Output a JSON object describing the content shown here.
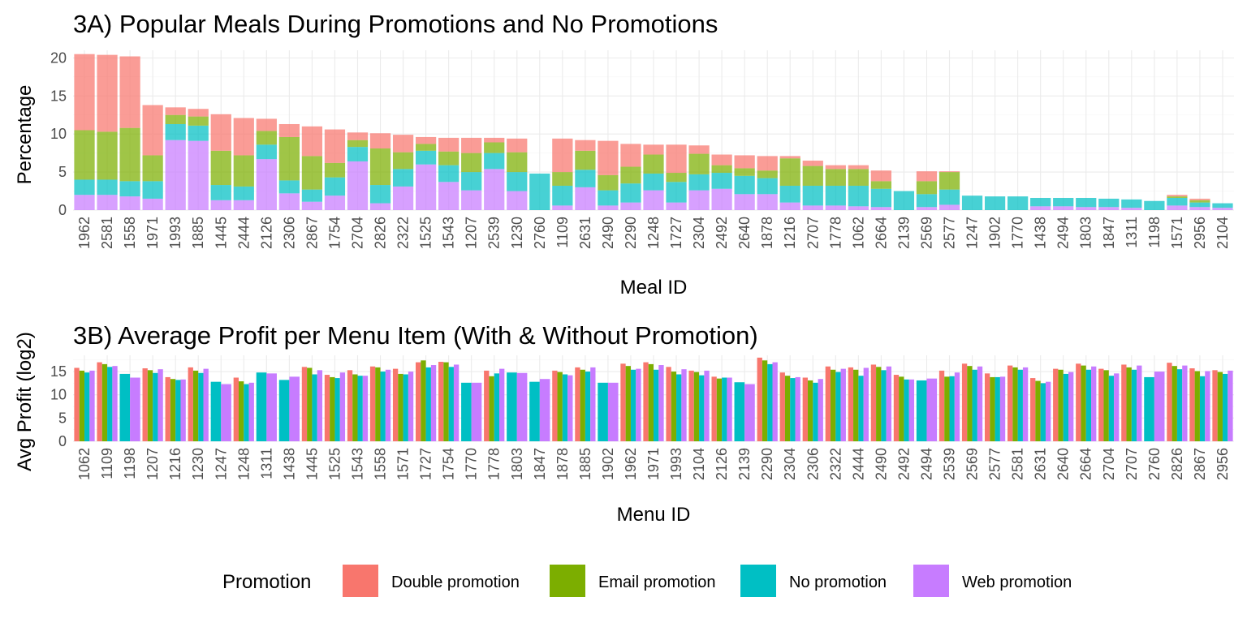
{
  "colors": {
    "Double promotion": "#F8766D",
    "Email promotion": "#7CAE00",
    "No promotion": "#00BFC4",
    "Web promotion": "#C77CFF"
  },
  "legend": {
    "title": "Promotion",
    "items": [
      "Double promotion",
      "Email promotion",
      "No promotion",
      "Web promotion"
    ]
  },
  "chart_data": [
    {
      "type": "bar",
      "stacked": true,
      "title": "3A) Popular Meals During Promotions and No Promotions",
      "xlabel": "Meal ID",
      "ylabel": "Percentage",
      "ylim": [
        0,
        21
      ],
      "yticks": [
        0,
        5,
        10,
        15,
        20
      ],
      "grid": true,
      "categories": [
        "1962",
        "2581",
        "1558",
        "1971",
        "1993",
        "1885",
        "1445",
        "2444",
        "2126",
        "2306",
        "2867",
        "1754",
        "2704",
        "2826",
        "2322",
        "1525",
        "1543",
        "1207",
        "2539",
        "1230",
        "2760",
        "1109",
        "2631",
        "2490",
        "2290",
        "1248",
        "1727",
        "2304",
        "2492",
        "2640",
        "1878",
        "1216",
        "2707",
        "1778",
        "1062",
        "2664",
        "2139",
        "2569",
        "2577",
        "1247",
        "1902",
        "1770",
        "1438",
        "2494",
        "1803",
        "1847",
        "1311",
        "1198",
        "1571",
        "2956",
        "2104"
      ],
      "series": [
        {
          "name": "Web promotion",
          "values": [
            2.0,
            2.0,
            1.8,
            1.5,
            9.2,
            9.1,
            1.3,
            1.3,
            6.7,
            2.2,
            1.1,
            1.9,
            6.4,
            0.9,
            3.1,
            6.0,
            3.7,
            2.6,
            5.4,
            2.5,
            0,
            0.6,
            3.0,
            0.6,
            1.0,
            2.6,
            1.0,
            2.6,
            2.8,
            2.1,
            2.1,
            1.0,
            0.6,
            0.6,
            0.5,
            0.4,
            0,
            0.4,
            0.7,
            0,
            0,
            0,
            0.5,
            0.5,
            0.4,
            0.4,
            0.3,
            0,
            0.6,
            0.4,
            0.3
          ]
        },
        {
          "name": "No promotion",
          "values": [
            2.0,
            2.0,
            2.0,
            2.3,
            2.1,
            2.0,
            2.0,
            1.8,
            1.9,
            1.7,
            1.6,
            2.4,
            1.9,
            2.4,
            2.3,
            1.8,
            2.2,
            2.4,
            2.1,
            2.5,
            4.8,
            2.6,
            2.3,
            2.0,
            2.5,
            2.2,
            2.7,
            2.1,
            2.1,
            2.4,
            2.1,
            2.2,
            2.6,
            2.6,
            2.7,
            2.4,
            2.5,
            1.7,
            2.0,
            1.9,
            1.8,
            1.8,
            1.1,
            1.1,
            1.2,
            1.1,
            1.1,
            1.2,
            1.0,
            0.6,
            0.6
          ]
        },
        {
          "name": "Email promotion",
          "values": [
            6.5,
            6.3,
            7.0,
            3.4,
            1.2,
            1.2,
            4.5,
            4.1,
            1.8,
            5.7,
            4.4,
            1.9,
            0.9,
            4.8,
            2.2,
            0.9,
            1.8,
            2.5,
            1.4,
            2.6,
            0,
            1.8,
            2.5,
            2.0,
            2.2,
            2.5,
            1.2,
            2.7,
            1.0,
            1.0,
            1.0,
            3.6,
            2.6,
            2.2,
            2.2,
            1.0,
            0,
            1.7,
            2.3,
            0,
            0,
            0,
            0,
            0,
            0,
            0,
            0,
            0,
            0.2,
            0.3,
            0
          ]
        },
        {
          "name": "Double promotion",
          "values": [
            10.0,
            10.1,
            9.4,
            6.6,
            1.0,
            1.0,
            4.8,
            4.9,
            1.6,
            1.7,
            3.9,
            4.4,
            1.0,
            2.0,
            2.3,
            0.9,
            1.8,
            2.0,
            0.6,
            1.8,
            0,
            4.4,
            1.4,
            4.5,
            3.0,
            1.3,
            3.7,
            1.1,
            1.4,
            1.7,
            1.9,
            0.3,
            0.7,
            0.5,
            0.5,
            1.4,
            0,
            1.3,
            0.1,
            0,
            0,
            0,
            0,
            0,
            0,
            0,
            0,
            0,
            0.2,
            0.2,
            0
          ]
        }
      ]
    },
    {
      "type": "bar",
      "grouped": true,
      "title": "3B) Average Profit per Menu Item (With & Without Promotion)",
      "xlabel": "Menu ID",
      "ylabel": "Avg Profit (log2)",
      "ylim": [
        0,
        18.5
      ],
      "yticks": [
        0,
        5,
        10,
        15
      ],
      "grid": true,
      "categories": [
        "1062",
        "1109",
        "1198",
        "1207",
        "1216",
        "1230",
        "1247",
        "1248",
        "1311",
        "1438",
        "1445",
        "1525",
        "1543",
        "1558",
        "1571",
        "1727",
        "1754",
        "1770",
        "1778",
        "1803",
        "1847",
        "1878",
        "1885",
        "1902",
        "1962",
        "1971",
        "1993",
        "2104",
        "2126",
        "2139",
        "2290",
        "2304",
        "2306",
        "2322",
        "2444",
        "2490",
        "2492",
        "2494",
        "2539",
        "2569",
        "2577",
        "2581",
        "2631",
        "2640",
        "2664",
        "2704",
        "2707",
        "2760",
        "2826",
        "2867",
        "2956"
      ],
      "series": [
        {
          "name": "Double promotion",
          "values": [
            15.8,
            17.0,
            null,
            15.7,
            13.8,
            15.9,
            null,
            13.7,
            null,
            null,
            16.0,
            14.3,
            15.3,
            16.1,
            15.6,
            17.0,
            17.1,
            null,
            15.2,
            null,
            null,
            15.2,
            15.9,
            null,
            16.7,
            17.0,
            16.0,
            15.2,
            13.9,
            null,
            18.0,
            14.8,
            13.7,
            16.1,
            15.9,
            16.5,
            14.3,
            null,
            15.2,
            16.7,
            14.6,
            16.3,
            13.6,
            15.6,
            16.7,
            15.6,
            16.5,
            null,
            16.9,
            15.7,
            15.3
          ]
        },
        {
          "name": "Email promotion",
          "values": [
            15.2,
            16.6,
            null,
            15.3,
            13.4,
            15.2,
            null,
            12.9,
            null,
            null,
            15.8,
            13.8,
            14.4,
            15.9,
            14.5,
            17.4,
            17.0,
            null,
            14.0,
            null,
            null,
            14.9,
            15.4,
            null,
            16.2,
            16.6,
            15.0,
            14.9,
            13.5,
            null,
            17.4,
            14.1,
            13.1,
            15.4,
            15.4,
            16.0,
            13.9,
            null,
            13.9,
            16.2,
            13.8,
            15.9,
            13.0,
            15.4,
            16.3,
            15.3,
            15.9,
            null,
            16.2,
            15.1,
            14.9
          ]
        },
        {
          "name": "No promotion",
          "values": [
            14.8,
            16.0,
            14.5,
            14.7,
            13.2,
            14.7,
            12.8,
            12.3,
            14.8,
            13.2,
            14.4,
            13.6,
            14.1,
            15.0,
            14.4,
            15.9,
            16.0,
            12.6,
            14.6,
            14.8,
            12.8,
            14.4,
            15.0,
            12.6,
            15.4,
            15.4,
            14.4,
            14.2,
            13.7,
            12.7,
            16.6,
            13.6,
            12.6,
            14.9,
            14.1,
            15.3,
            13.3,
            13.1,
            14.0,
            15.4,
            13.8,
            15.4,
            12.5,
            14.5,
            15.4,
            14.1,
            15.4,
            13.8,
            15.5,
            14.0,
            14.5
          ]
        },
        {
          "name": "Web promotion",
          "values": [
            15.2,
            16.2,
            13.7,
            15.5,
            13.3,
            15.6,
            12.3,
            12.6,
            14.6,
            13.9,
            15.3,
            14.8,
            14.1,
            15.4,
            15.0,
            16.4,
            16.5,
            12.6,
            15.6,
            14.7,
            13.4,
            14.2,
            15.9,
            12.6,
            15.6,
            16.4,
            15.5,
            15.2,
            13.7,
            12.3,
            17.0,
            13.8,
            13.4,
            15.6,
            15.8,
            16.1,
            13.3,
            13.5,
            14.8,
            16.1,
            13.9,
            15.9,
            12.8,
            14.9,
            16.1,
            14.6,
            16.3,
            15.0,
            16.3,
            15.1,
            15.2
          ]
        }
      ]
    }
  ]
}
